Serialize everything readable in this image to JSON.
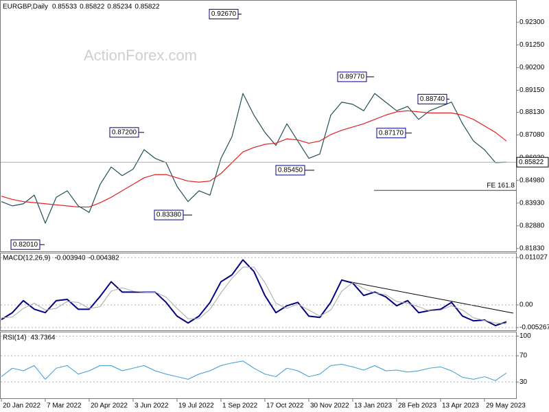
{
  "chart_data": [
    {
      "type": "line",
      "title": "EURGBP,Daily",
      "watermark": "ActionForex.com",
      "header_values": [
        0.85533,
        0.85822,
        0.85234,
        0.85822
      ],
      "categories": [
        "20 Jan 2022",
        null,
        null,
        null,
        "7 Mar 2022",
        null,
        null,
        null,
        "20 Apr 2022",
        null,
        null,
        null,
        "3 Jun 2022",
        null,
        null,
        null,
        "19 Jul 2022",
        null,
        null,
        null,
        "1 Sep 2022",
        null,
        null,
        null,
        "17 Oct 2022",
        null,
        null,
        null,
        "30 Nov 2022",
        null,
        null,
        null,
        "13 Jan 2023",
        null,
        null,
        null,
        "28 Feb 2023",
        null,
        null,
        null,
        "13 Apr 2023",
        null,
        null,
        null,
        "29 May 2023",
        null,
        null
      ],
      "series": [
        {
          "color": "#1f4f55",
          "values": [
            0.84,
            0.838,
            0.839,
            0.843,
            0.83,
            0.842,
            0.845,
            0.838,
            0.835,
            0.848,
            0.856,
            0.852,
            0.855,
            0.864,
            0.86,
            0.858,
            0.847,
            0.84,
            0.845,
            0.843,
            0.86,
            0.87,
            0.89,
            0.88,
            0.872,
            0.866,
            0.876,
            0.868,
            0.86,
            0.862,
            0.88,
            0.886,
            0.885,
            0.882,
            0.89,
            0.886,
            0.882,
            0.884,
            0.878,
            0.882,
            0.884,
            0.886,
            0.876,
            0.868,
            0.864,
            0.858,
            0.85822
          ]
        },
        {
          "color": "#e02020",
          "values": [
            0.8425,
            0.841,
            0.84,
            0.8395,
            0.839,
            0.8385,
            0.838,
            0.8375,
            0.8375,
            0.8395,
            0.842,
            0.845,
            0.848,
            0.851,
            0.8525,
            0.8525,
            0.851,
            0.8495,
            0.849,
            0.8495,
            0.853,
            0.858,
            0.863,
            0.865,
            0.8665,
            0.867,
            0.869,
            0.8685,
            0.867,
            0.868,
            0.871,
            0.873,
            0.8745,
            0.876,
            0.878,
            0.88,
            0.8815,
            0.882,
            0.8815,
            0.881,
            0.881,
            0.881,
            0.88,
            0.878,
            0.875,
            0.872,
            0.868
          ]
        }
      ],
      "ylim": [
        0.817,
        0.9326
      ],
      "yticks": [
        {
          "value": 0.923,
          "label": "0.92300"
        },
        {
          "value": 0.9125,
          "label": "0.91250"
        },
        {
          "value": 0.902,
          "label": "0.90200"
        },
        {
          "value": 0.8915,
          "label": "0.89150"
        },
        {
          "value": 0.8813,
          "label": "0.88130"
        },
        {
          "value": 0.8708,
          "label": "0.87080"
        },
        {
          "value": 0.8603,
          "label": "0.86030"
        },
        {
          "value": 0.8498,
          "label": "0.84980"
        },
        {
          "value": 0.8393,
          "label": "0.83930"
        },
        {
          "value": 0.8288,
          "label": "0.82880"
        },
        {
          "value": 0.8183,
          "label": "0.81830"
        }
      ],
      "last_price": 0.85822,
      "fe_level": {
        "value": 0.8452,
        "label": "FE 161.8"
      },
      "annotations": [
        {
          "value": 0.9267,
          "label": "0.92670"
        },
        {
          "value": 0.872,
          "label": "0.87200"
        },
        {
          "value": 0.8338,
          "label": "0.83380"
        },
        {
          "value": 0.8201,
          "label": "0.82010"
        },
        {
          "value": 0.8545,
          "label": "0.85450"
        },
        {
          "value": 0.8977,
          "label": "0.89770"
        },
        {
          "value": 0.8717,
          "label": "0.87170"
        },
        {
          "value": 0.8874,
          "label": "0.88740"
        }
      ],
      "grid": false
    },
    {
      "type": "line",
      "title": "MACD(12,26,9)",
      "header_values": [
        {
          "value": -0.00394,
          "label": "-0.003940"
        },
        -0.004382
      ],
      "series": [
        {
          "color": "#000080",
          "width": 2,
          "values": [
            -0.0034,
            -0.0018,
            0.001,
            -0.001,
            -0.0018,
            0.001,
            0.0013,
            -0.001,
            -0.001,
            0.002,
            0.0054,
            0.003,
            0.003,
            0.003,
            0.003,
            0.0006,
            -0.0026,
            -0.0042,
            -0.0026,
            0.0006,
            0.0054,
            0.007,
            0.0105,
            0.0078,
            0.0022,
            -0.0018,
            -0.0002,
            0.0006,
            -0.0026,
            -0.0029,
            0.0006,
            0.0058,
            0.0051,
            0.0022,
            0.003,
            0.0019,
            -0.0002,
            0.001,
            -0.0018,
            -0.0013,
            -0.001,
            0.0006,
            -0.0026,
            -0.0037,
            -0.0035,
            -0.0048,
            -0.00394
          ]
        },
        {
          "color": "#a8a8a8",
          "width": 1,
          "values": [
            -0.003,
            -0.0028,
            -0.0008,
            0.0004,
            -0.0012,
            -0.0008,
            0.0008,
            0.0006,
            -0.0008,
            -0.0004,
            0.0032,
            0.004,
            0.0032,
            0.003,
            0.003,
            0.0018,
            -0.0008,
            -0.0032,
            -0.0032,
            -0.001,
            0.0028,
            0.0062,
            0.0088,
            0.0088,
            0.0052,
            0.0004,
            -0.0008,
            0.0002,
            -0.0012,
            -0.0026,
            -0.0012,
            0.0032,
            0.0052,
            0.0038,
            0.0028,
            0.0024,
            0.0008,
            0.0004,
            -0.0004,
            -0.0014,
            -0.0012,
            -0.0002,
            -0.0012,
            -0.003,
            -0.0036,
            -0.0042,
            -0.004382
          ]
        }
      ],
      "ylim": [
        -0.0059,
        0.012
      ],
      "yticks": [
        0.011027,
        {
          "value": 0,
          "label": "0.00"
        },
        -0.005267
      ],
      "grid": true
    },
    {
      "type": "line",
      "title": "RSI(14)",
      "header_values": [
        43.7364
      ],
      "series": [
        {
          "color": "#3a9ad0",
          "width": 1,
          "values": [
            38,
            51,
            47,
            55,
            34,
            51,
            55,
            42,
            47,
            55,
            55,
            47,
            51,
            55,
            47,
            42,
            38,
            34,
            42,
            47,
            55,
            59,
            62,
            51,
            42,
            38,
            51,
            47,
            38,
            42,
            55,
            57,
            53,
            48,
            55,
            47,
            48,
            45,
            47,
            51,
            53,
            47,
            37,
            34,
            38,
            32,
            43.7
          ]
        }
      ],
      "ylim": [
        5,
        105.8
      ],
      "yticks": [
        100,
        70,
        30
      ],
      "grid": true
    }
  ]
}
